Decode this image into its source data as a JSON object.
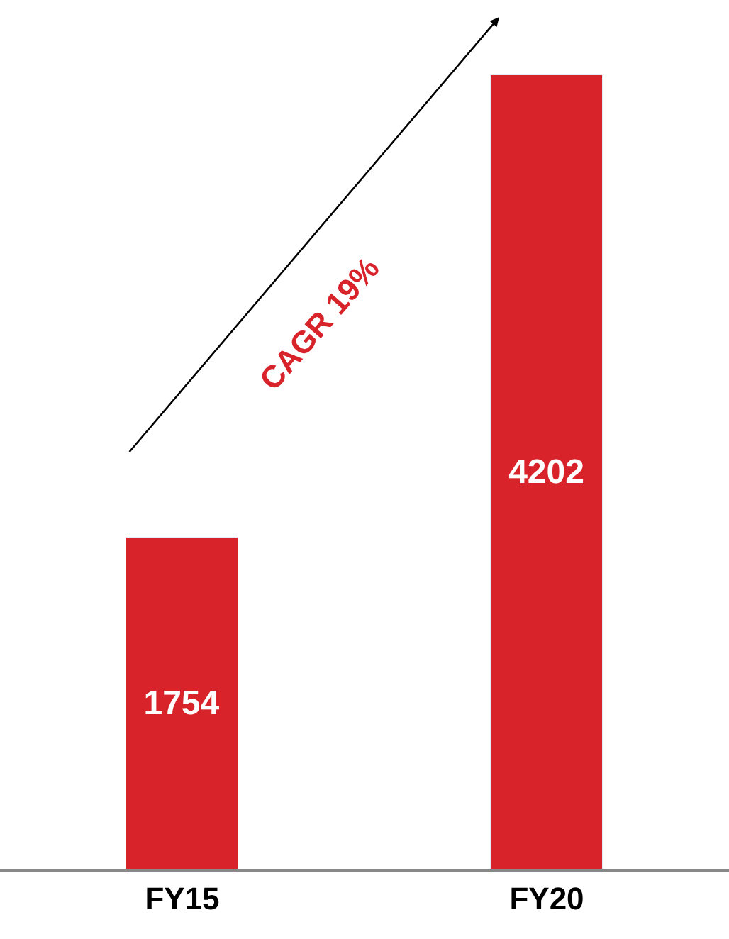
{
  "chart_data": {
    "type": "bar",
    "categories": [
      "FY15",
      "FY20"
    ],
    "values": [
      1754,
      4202
    ],
    "color": "#d9232b",
    "ylim": [
      0,
      4600
    ],
    "data_labels": true,
    "legend": false,
    "annotations": [
      "CAGR 19%"
    ]
  }
}
